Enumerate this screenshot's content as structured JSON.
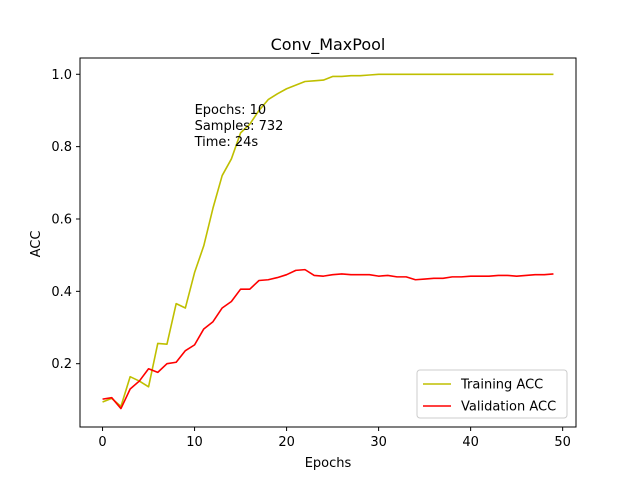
{
  "chart_data": {
    "type": "line",
    "title": "Conv_MaxPool",
    "xlabel": "Epochs",
    "ylabel": "ACC",
    "xlim": [
      -2.45,
      51.45
    ],
    "ylim": [
      0.025,
      1.045
    ],
    "xticks": [
      0,
      10,
      20,
      30,
      40,
      50
    ],
    "yticks": [
      0.2,
      0.4,
      0.6,
      0.8,
      1.0
    ],
    "xtick_labels": [
      "0",
      "10",
      "20",
      "30",
      "40",
      "50"
    ],
    "ytick_labels": [
      "0.2",
      "0.4",
      "0.6",
      "0.8",
      "1.0"
    ],
    "grid": false,
    "legend_position": "lower right",
    "annotation": {
      "lines": [
        "Epochs: 10",
        "Samples: 732",
        "Time: 24s"
      ],
      "x": 10,
      "y": 0.86
    },
    "x": [
      0,
      1,
      2,
      3,
      4,
      5,
      6,
      7,
      8,
      9,
      10,
      11,
      12,
      13,
      14,
      15,
      16,
      17,
      18,
      19,
      20,
      21,
      22,
      23,
      24,
      25,
      26,
      27,
      28,
      29,
      30,
      31,
      32,
      33,
      34,
      35,
      36,
      37,
      38,
      39,
      40,
      41,
      42,
      43,
      44,
      45,
      46,
      47,
      48,
      49
    ],
    "series": [
      {
        "name": "Training ACC",
        "color": "#bfbf00",
        "values": [
          0.094,
          0.104,
          0.082,
          0.164,
          0.152,
          0.136,
          0.256,
          0.254,
          0.366,
          0.354,
          0.452,
          0.526,
          0.63,
          0.72,
          0.766,
          0.838,
          0.862,
          0.9,
          0.93,
          0.946,
          0.96,
          0.97,
          0.98,
          0.982,
          0.984,
          0.994,
          0.994,
          0.996,
          0.996,
          0.998,
          1.0,
          1.0,
          1.0,
          1.0,
          1.0,
          1.0,
          1.0,
          1.0,
          1.0,
          1.0,
          1.0,
          1.0,
          1.0,
          1.0,
          1.0,
          1.0,
          1.0,
          1.0,
          1.0,
          1.0
        ]
      },
      {
        "name": "Validation ACC",
        "color": "#ff0000",
        "values": [
          0.102,
          0.106,
          0.076,
          0.13,
          0.152,
          0.186,
          0.176,
          0.2,
          0.204,
          0.236,
          0.252,
          0.296,
          0.316,
          0.354,
          0.372,
          0.406,
          0.406,
          0.43,
          0.432,
          0.438,
          0.446,
          0.458,
          0.46,
          0.444,
          0.442,
          0.446,
          0.448,
          0.446,
          0.446,
          0.446,
          0.442,
          0.444,
          0.44,
          0.44,
          0.432,
          0.434,
          0.436,
          0.436,
          0.44,
          0.44,
          0.442,
          0.442,
          0.442,
          0.444,
          0.444,
          0.442,
          0.444,
          0.446,
          0.446,
          0.448
        ]
      }
    ]
  }
}
